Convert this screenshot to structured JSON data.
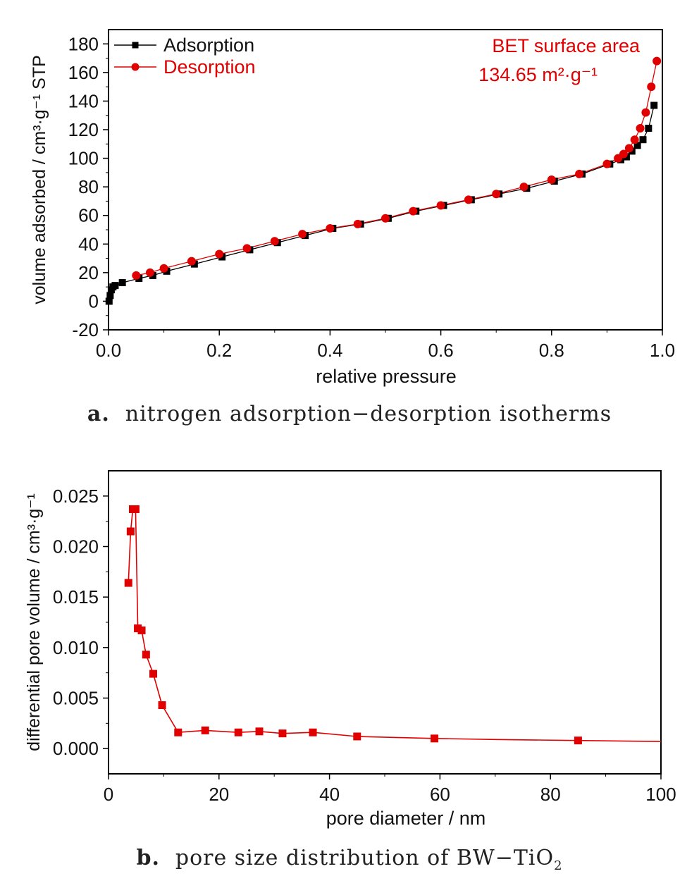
{
  "chart_data": [
    {
      "type": "scatter",
      "title": "",
      "xlabel": "relative pressure",
      "ylabel": "volume adsorbed / cm³·g⁻¹  STP",
      "xlim": [
        0.0,
        1.0
      ],
      "ylim": [
        -20,
        190
      ],
      "x_ticks": [
        "0.0",
        "0.2",
        "0.4",
        "0.6",
        "0.8",
        "1.0"
      ],
      "y_ticks": [
        "-20",
        "0",
        "20",
        "40",
        "60",
        "80",
        "100",
        "120",
        "140",
        "160",
        "180"
      ],
      "legend_position": "top-left",
      "annotation": [
        "BET surface area",
        "134.65 m²·g⁻¹"
      ],
      "series": [
        {
          "name": "Adsorption",
          "color": "#000000",
          "marker": "square",
          "x": [
            0.001,
            0.003,
            0.005,
            0.008,
            0.012,
            0.025,
            0.055,
            0.08,
            0.105,
            0.155,
            0.205,
            0.255,
            0.305,
            0.355,
            0.405,
            0.455,
            0.505,
            0.555,
            0.605,
            0.655,
            0.705,
            0.755,
            0.805,
            0.855,
            0.905,
            0.925,
            0.935,
            0.945,
            0.955,
            0.965,
            0.975,
            0.985
          ],
          "y": [
            0,
            4,
            8,
            10,
            11,
            13,
            16,
            18,
            21,
            26,
            31,
            36,
            41,
            46,
            51,
            54,
            58,
            63,
            67,
            71,
            75,
            79,
            84,
            89,
            96,
            99,
            101,
            105,
            109,
            113,
            121,
            137
          ]
        },
        {
          "name": "Desorption",
          "color": "#e00000",
          "marker": "circle",
          "x": [
            0.05,
            0.075,
            0.1,
            0.15,
            0.2,
            0.25,
            0.3,
            0.35,
            0.4,
            0.45,
            0.5,
            0.55,
            0.6,
            0.65,
            0.7,
            0.75,
            0.8,
            0.85,
            0.9,
            0.92,
            0.93,
            0.94,
            0.95,
            0.96,
            0.97,
            0.98,
            0.99
          ],
          "y": [
            18,
            20,
            23,
            28,
            33,
            37,
            42,
            47,
            51,
            54,
            58,
            63,
            67,
            71,
            75,
            80,
            85,
            89,
            96,
            100,
            103,
            107,
            113,
            121,
            132,
            150,
            168
          ]
        }
      ]
    },
    {
      "type": "line",
      "title": "",
      "xlabel": "pore diameter / nm",
      "ylabel": "differential pore volume / cm³·g⁻¹",
      "xlim": [
        0,
        100
      ],
      "ylim": [
        -0.0025,
        0.0275
      ],
      "x_ticks": [
        "0",
        "20",
        "40",
        "60",
        "80",
        "100"
      ],
      "y_ticks": [
        "0.000",
        "0.005",
        "0.010",
        "0.015",
        "0.020",
        "0.025"
      ],
      "series": [
        {
          "color": "#e00000",
          "marker": "square",
          "x": [
            3.6,
            4.0,
            4.4,
            4.9,
            5.3,
            6.0,
            6.8,
            8.1,
            9.7,
            12.6,
            17.5,
            23.5,
            27.3,
            31.5,
            37.0,
            45.0,
            59.0,
            85.0
          ],
          "y": [
            0.0164,
            0.0215,
            0.0237,
            0.0237,
            0.0119,
            0.0117,
            0.0093,
            0.0074,
            0.0043,
            0.0016,
            0.0018,
            0.0016,
            0.0017,
            0.0015,
            0.0016,
            0.0012,
            0.001,
            0.0008
          ]
        }
      ],
      "tail": {
        "x": [
          45.0,
          59.0,
          70.0,
          85.0,
          100.0
        ],
        "y": [
          0.0012,
          0.001,
          0.0009,
          0.0008,
          0.0007
        ]
      }
    }
  ],
  "captions": {
    "a": {
      "label": "a.",
      "text": "nitrogen adsorption−desorption isotherms"
    },
    "b": {
      "label": "b.",
      "text": "pore size distribution of BW−TiO",
      "sub": "2"
    }
  }
}
